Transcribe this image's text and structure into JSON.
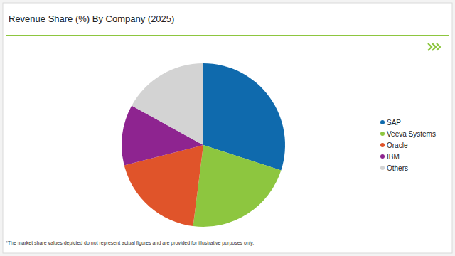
{
  "chart_data": {
    "type": "pie",
    "title": "Revenue Share (%) By Company (2025)",
    "categories": [
      "SAP",
      "Veeva Systems",
      "Oracle",
      "IBM",
      "Others"
    ],
    "values": [
      30,
      22,
      19,
      12,
      17
    ],
    "colors": [
      "#0f6aad",
      "#8dc63f",
      "#e0542a",
      "#8e2490",
      "#d3d3d3"
    ],
    "legend": "right",
    "footnote": "*The market share values depicted do not represent actual figures and are provided for illustrative purposes only."
  }
}
